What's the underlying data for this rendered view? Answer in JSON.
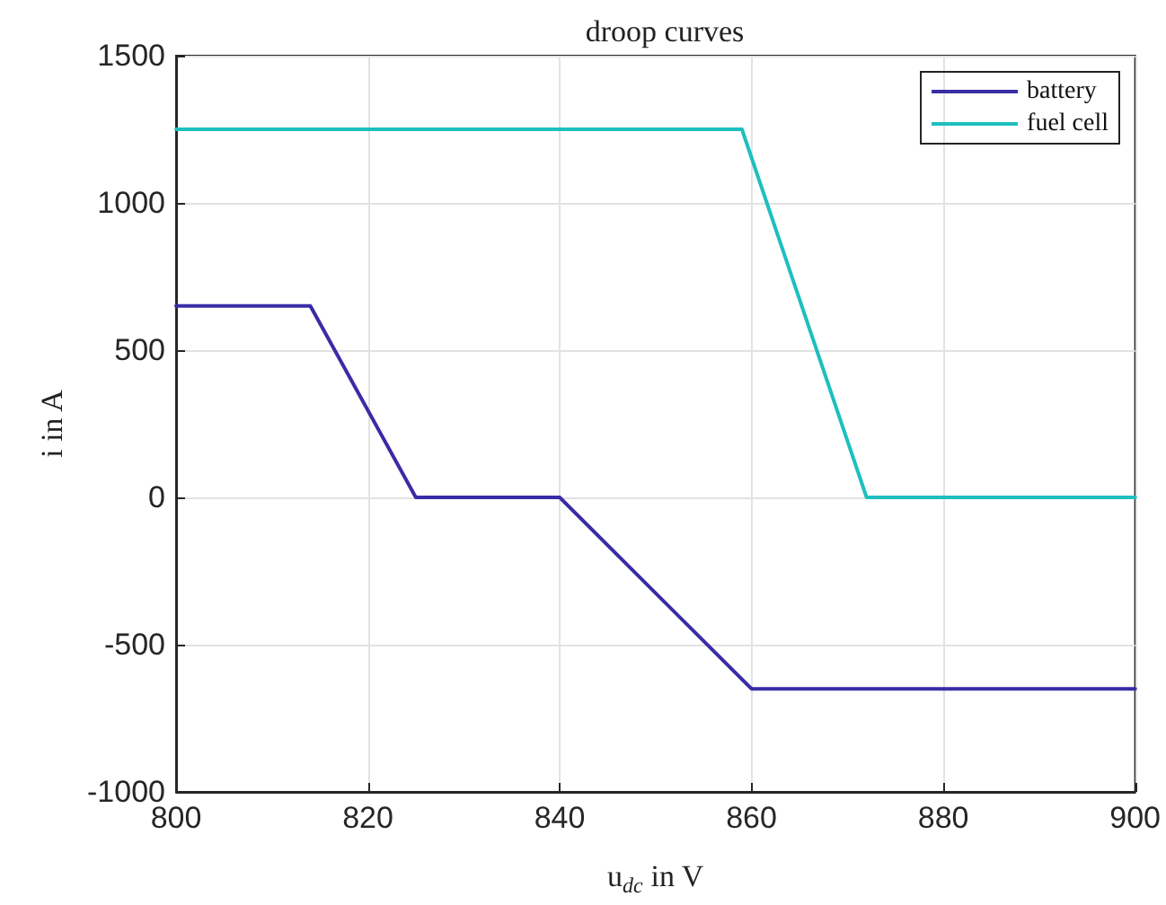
{
  "chart_data": {
    "type": "line",
    "title": "droop curves",
    "xlabel": "u$_{dc}$ in V",
    "ylabel": "i in A",
    "xlim": [
      800,
      900
    ],
    "xticks": [
      800,
      820,
      840,
      860,
      880,
      900
    ],
    "ylim": [
      -1000,
      1500
    ],
    "yticks": [
      -1000,
      -500,
      0,
      500,
      1000,
      1500
    ],
    "grid": true,
    "legend": "top right",
    "marker": "none",
    "line_style": "solid",
    "series": [
      {
        "name": "battery",
        "color": "#3a2ca6",
        "x": [
          800,
          814,
          825,
          840,
          860,
          900
        ],
        "values": [
          650,
          650,
          0,
          0,
          -650,
          -650
        ]
      },
      {
        "name": "fuel cell",
        "color": "#1dbfbf",
        "x": [
          800,
          859,
          872,
          900
        ],
        "values": [
          1250,
          1250,
          0,
          0
        ]
      }
    ]
  }
}
